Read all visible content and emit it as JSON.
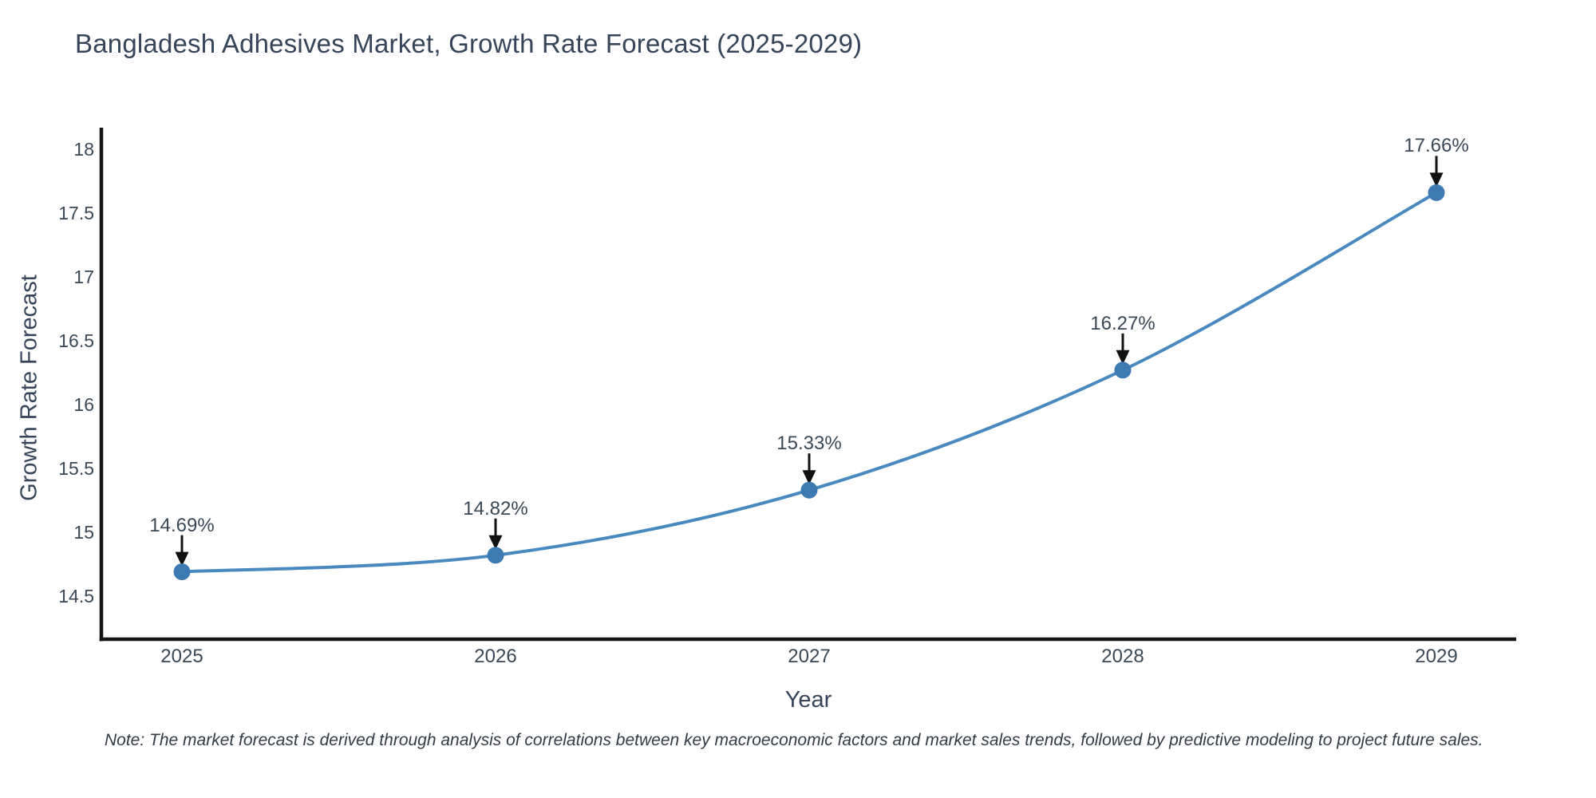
{
  "chart_data": {
    "type": "line",
    "title": "Bangladesh Adhesives Market, Growth Rate Forecast (2025-2029)",
    "x": [
      "2025",
      "2026",
      "2027",
      "2028",
      "2029"
    ],
    "series": [
      {
        "name": "Growth Rate Forecast",
        "values": [
          14.69,
          14.82,
          15.33,
          16.27,
          17.66
        ]
      }
    ],
    "point_labels": [
      "14.69%",
      "14.82%",
      "15.33%",
      "16.27%",
      "17.66%"
    ],
    "xlabel": "Year",
    "ylabel": "Growth Rate Forecast",
    "ylim": [
      14.2,
      18.25
    ],
    "yticks": [
      {
        "value": 18,
        "label": "18"
      },
      {
        "value": 17.5,
        "label": "17.5"
      },
      {
        "value": 17,
        "label": "17"
      },
      {
        "value": 16.5,
        "label": "16.5"
      },
      {
        "value": 16,
        "label": "16"
      },
      {
        "value": 15.5,
        "label": "15.5"
      },
      {
        "value": 15,
        "label": "15"
      },
      {
        "value": 14.5,
        "label": "14.5"
      }
    ],
    "line_shape": "spline",
    "grid": false,
    "legend": "none",
    "colors": {
      "line": "#4a89c0",
      "marker": "#3d7ab2",
      "axis": "#151515",
      "arrow": "#111111",
      "tick_text": "#3b4856",
      "title_text": "#36455a"
    }
  },
  "note": "Note: The market forecast is derived through analysis of correlations between key macroeconomic factors and market sales trends, followed by predictive modeling to project future sales."
}
